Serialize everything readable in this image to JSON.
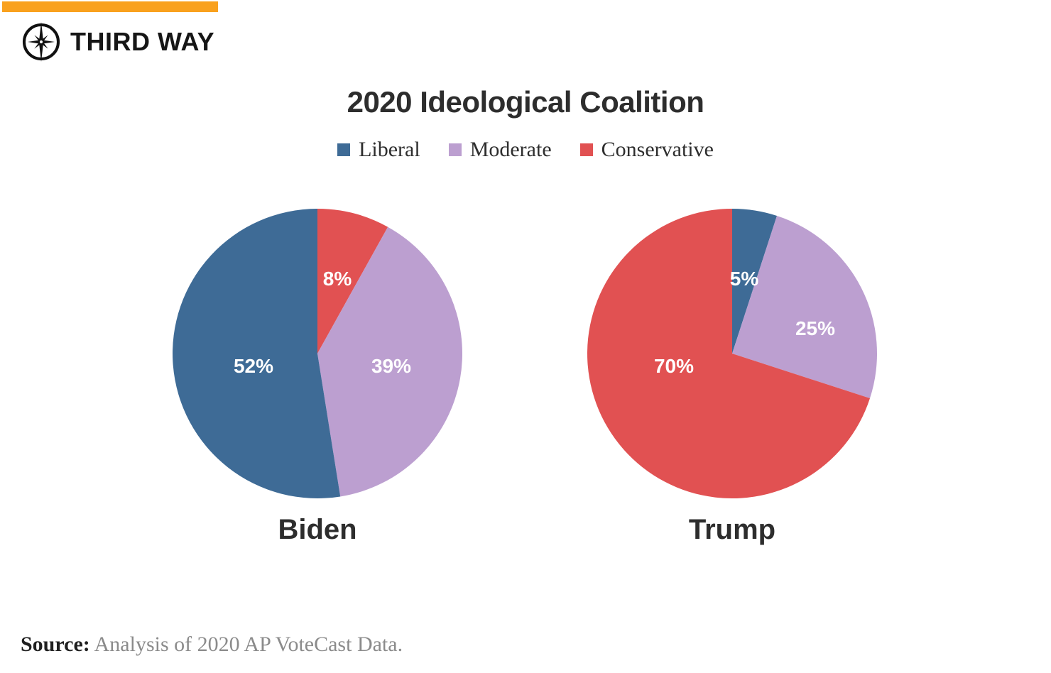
{
  "brand": {
    "name": "THIRD WAY",
    "accent_bar_color": "#F9A11E",
    "logo_color": "#111111"
  },
  "chart_data": {
    "type": "pie",
    "title": "2020 Ideological Coalition",
    "legend_position": "top-center",
    "legend": [
      {
        "label": "Liberal",
        "color": "#3E6B96"
      },
      {
        "label": "Moderate",
        "color": "#BC9FD0"
      },
      {
        "label": "Conservative",
        "color": "#E15152"
      }
    ],
    "pies": [
      {
        "name": "Biden",
        "slices": [
          {
            "key": "Liberal",
            "value": 52,
            "label": "52%"
          },
          {
            "key": "Moderate",
            "value": 39,
            "label": "39%"
          },
          {
            "key": "Conservative",
            "value": 8,
            "label": "8%"
          }
        ],
        "draw_order": [
          "Conservative",
          "Moderate",
          "Liberal"
        ],
        "start_angle_deg": 0,
        "direction": "clockwise"
      },
      {
        "name": "Trump",
        "slices": [
          {
            "key": "Liberal",
            "value": 5,
            "label": "5%"
          },
          {
            "key": "Moderate",
            "value": 25,
            "label": "25%"
          },
          {
            "key": "Conservative",
            "value": 70,
            "label": "70%"
          }
        ],
        "draw_order": [
          "Liberal",
          "Moderate",
          "Conservative"
        ],
        "start_angle_deg": 0,
        "direction": "clockwise"
      }
    ]
  },
  "source": {
    "prefix": "Source:",
    "text": "Analysis of 2020 AP VoteCast Data."
  }
}
